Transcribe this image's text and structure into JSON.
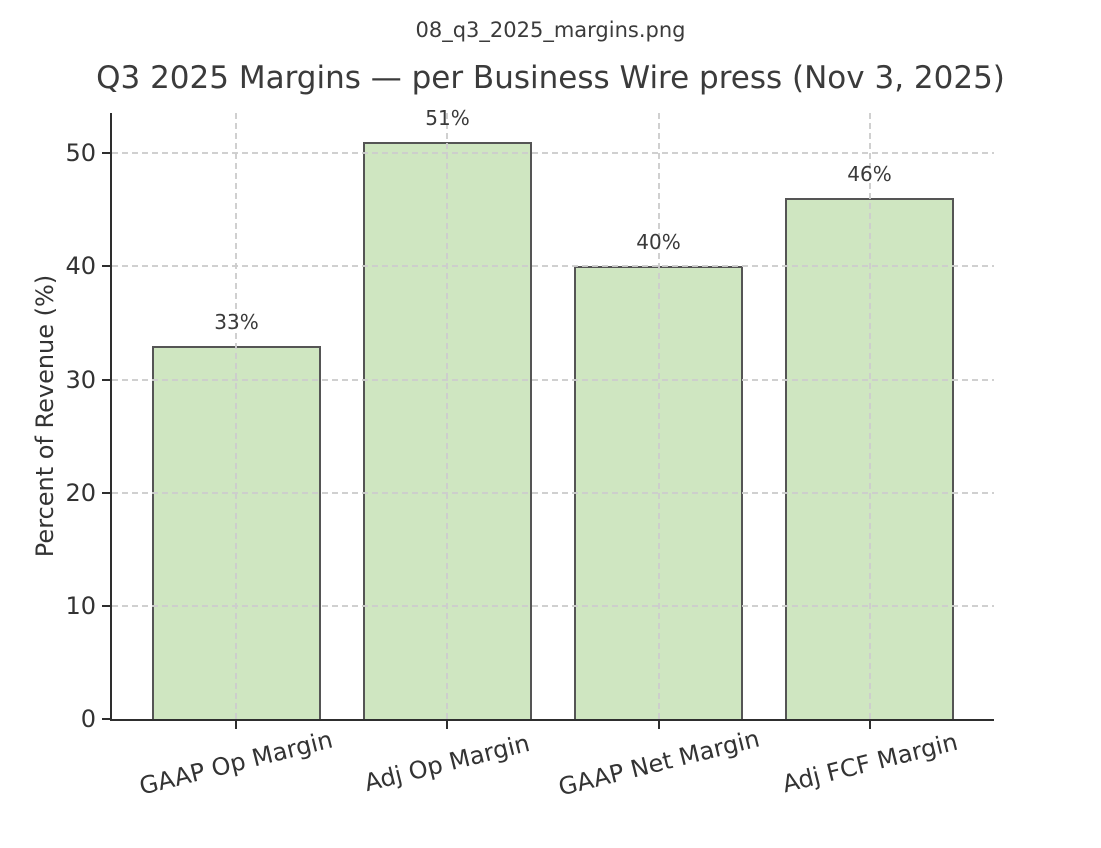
{
  "figure": {
    "suptitle": "08_q3_2025_margins.png"
  },
  "chart_data": {
    "type": "bar",
    "title": "Q3 2025 Margins — per Business Wire press (Nov 3, 2025)",
    "categories": [
      "GAAP Op Margin",
      "Adj Op Margin",
      "GAAP Net Margin",
      "Adj FCF Margin"
    ],
    "values": [
      33,
      51,
      40,
      46
    ],
    "bar_labels": [
      "33%",
      "51%",
      "40%",
      "46%"
    ],
    "xlabel": "",
    "ylabel": "Percent of Revenue (%)",
    "yticks": [
      0,
      10,
      20,
      30,
      40,
      50
    ],
    "ytick_labels": [
      "0",
      "10",
      "20",
      "30",
      "40",
      "50"
    ],
    "ylim": [
      0,
      53.55
    ],
    "grid": true,
    "grid_style": "dashed",
    "legend": "none",
    "colors": {
      "bar_fill": "#cfe6c1",
      "bar_edge": "#555555",
      "grid": "#cdcdcd",
      "spine": "#2e2e2e",
      "text": "#3a3a3a"
    }
  }
}
